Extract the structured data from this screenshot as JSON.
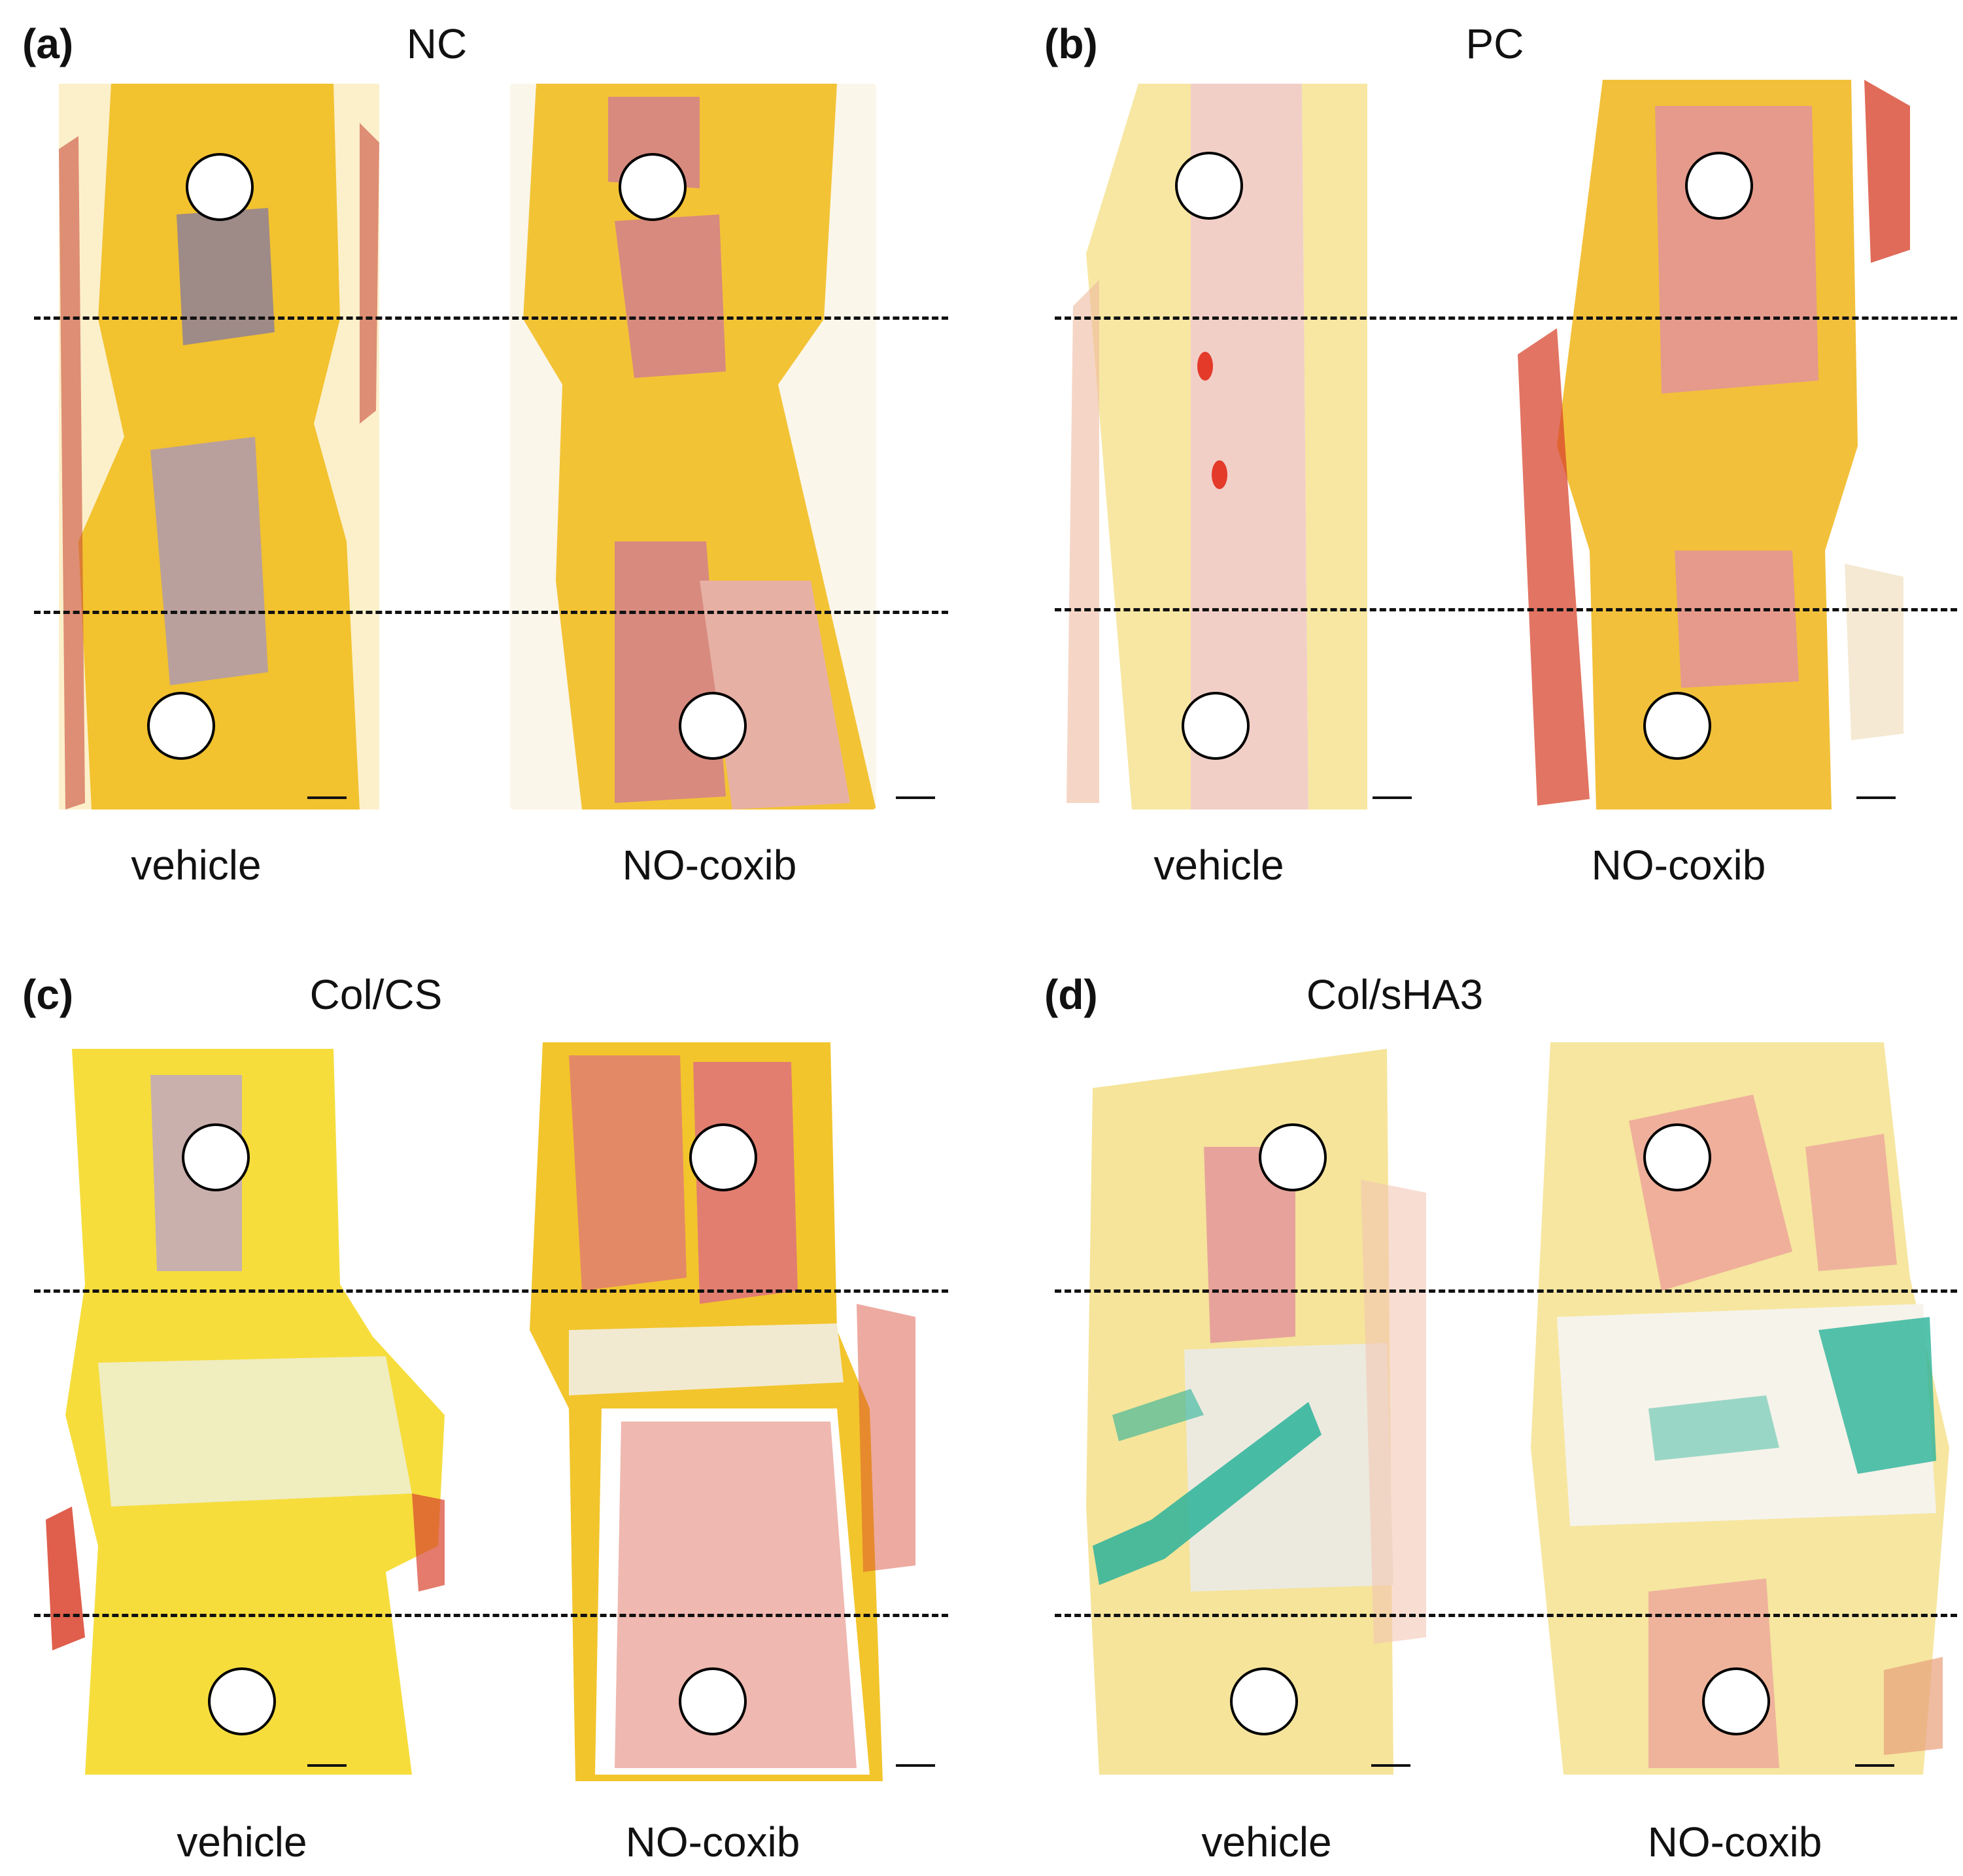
{
  "figure": {
    "panels": [
      {
        "letter": "(a)",
        "title": "NC",
        "samples": [
          {
            "label": "vehicle",
            "stain": {
              "base": "#f2c22f",
              "marrow": "#9e8a86",
              "accent": "#c94d3a"
            }
          },
          {
            "label": "NO-coxib",
            "stain": {
              "base": "#f3c336",
              "marrow": "#d88a7e",
              "accent": "#d04a3a"
            }
          }
        ]
      },
      {
        "letter": "(b)",
        "title": "PC",
        "samples": [
          {
            "label": "vehicle",
            "stain": {
              "base": "#f7e7a2",
              "marrow": "#f1cfc7",
              "accent": "#e33a2a"
            }
          },
          {
            "label": "NO-coxib",
            "stain": {
              "base": "#f2c03a",
              "marrow": "#e59a8c",
              "accent": "#d8462f"
            }
          }
        ]
      },
      {
        "letter": "(c)",
        "title": "Col/CS",
        "samples": [
          {
            "label": "vehicle",
            "stain": {
              "base": "#f6dd3c",
              "marrow": "#c9b0ad",
              "accent": "#d9432d"
            }
          },
          {
            "label": "NO-coxib",
            "stain": {
              "base": "#f2c52c",
              "marrow": "#e27e70",
              "accent": "#d8432e"
            }
          }
        ]
      },
      {
        "letter": "(d)",
        "title": "Col/sHA3",
        "samples": [
          {
            "label": "vehicle",
            "stain": {
              "base": "#f5e49a",
              "marrow": "#e7a39b",
              "accent": "#2bb39a"
            }
          },
          {
            "label": "NO-coxib",
            "stain": {
              "base": "#f6e6a0",
              "marrow": "#ec9c98",
              "accent": "#2bb39a"
            }
          }
        ]
      }
    ]
  }
}
